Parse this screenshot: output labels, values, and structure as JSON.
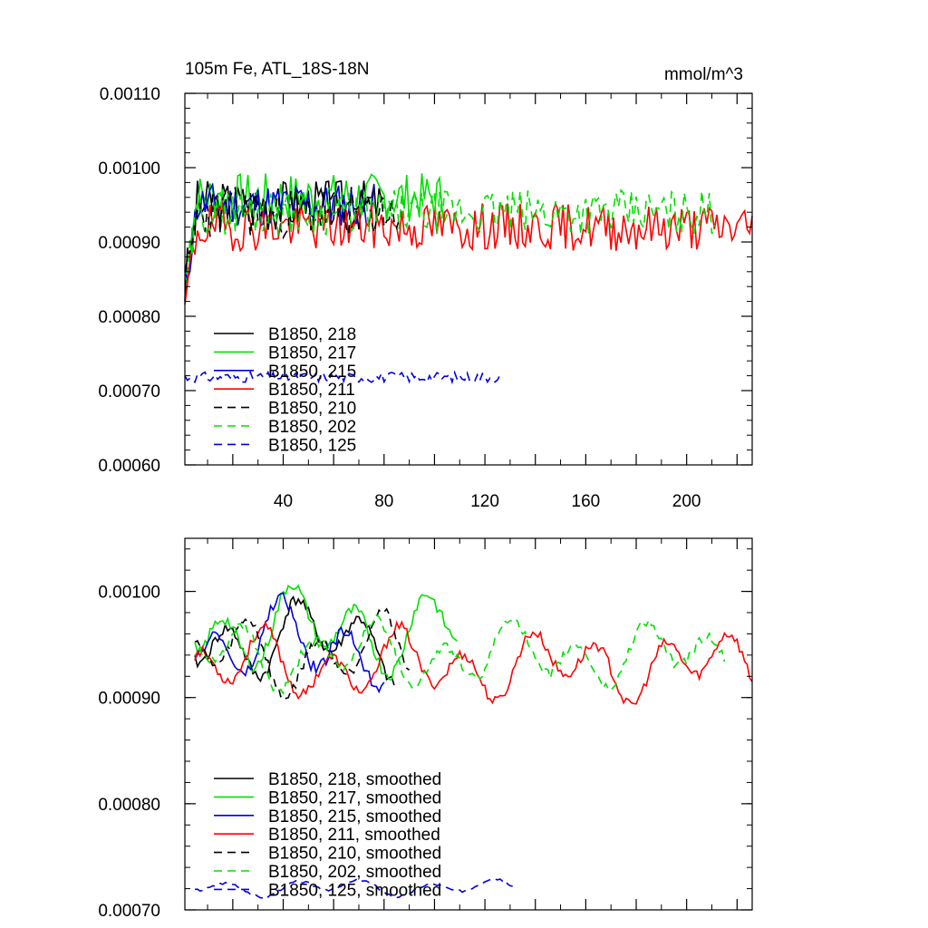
{
  "chart_data": [
    {
      "type": "line",
      "title": "105m Fe, ATL_18S-18N",
      "units": "mmol/m^3",
      "xlabel": "",
      "ylabel": "",
      "xlim": [
        1,
        226
      ],
      "ylim": [
        0.0006,
        0.0011
      ],
      "xticks": [
        "40",
        "80",
        "120",
        "160",
        "200"
      ],
      "yticks": [
        "0.00060",
        "0.00070",
        "0.00080",
        "0.00090",
        "0.00100",
        "0.00110"
      ],
      "legend_position": "lower-left",
      "series": [
        {
          "name": "B1850, 218",
          "color": "#000000",
          "dash": "solid",
          "length": 80,
          "base": 0.00095,
          "amp": 3.5e-05,
          "seed": 3
        },
        {
          "name": "B1850, 217",
          "color": "#00e000",
          "dash": "solid",
          "length": 105,
          "base": 0.00096,
          "amp": 3.3e-05,
          "seed": 7
        },
        {
          "name": "B1850, 215",
          "color": "#0000e0",
          "dash": "solid",
          "length": 76,
          "base": 0.00095,
          "amp": 3e-05,
          "seed": 11
        },
        {
          "name": "B1850, 211",
          "color": "#ff0000",
          "dash": "solid",
          "length": 226,
          "base": 0.00092,
          "amp": 3.2e-05,
          "seed": 19
        },
        {
          "name": "B1850, 210",
          "color": "#000000",
          "dash": "dashed",
          "length": 86,
          "base": 0.00094,
          "amp": 3.5e-05,
          "seed": 23
        },
        {
          "name": "B1850, 202",
          "color": "#00e000",
          "dash": "dashed",
          "length": 211,
          "base": 0.00094,
          "amp": 3e-05,
          "seed": 29
        },
        {
          "name": "B1850, 125",
          "color": "#0000e0",
          "dash": "dashed",
          "length": 127,
          "base": 0.000718,
          "amp": 7e-06,
          "seed": 31
        }
      ]
    },
    {
      "type": "line",
      "title": "",
      "xlabel": "",
      "ylabel": "",
      "xlim": [
        1,
        226
      ],
      "ylim": [
        0.0007,
        0.00105
      ],
      "xticks": [],
      "yticks": [
        "0.00070",
        "0.00080",
        "0.00090",
        "0.00100"
      ],
      "legend_position": "lower-left",
      "series": [
        {
          "name": "B1850, 218, smoothed",
          "color": "#000000",
          "dash": "solid",
          "start": 5,
          "length": 80,
          "base": 0.000955,
          "amp": 2.8e-05,
          "seed": 41
        },
        {
          "name": "B1850, 217, smoothed",
          "color": "#00e000",
          "dash": "solid",
          "start": 5,
          "length": 105,
          "base": 0.000965,
          "amp": 3e-05,
          "seed": 43
        },
        {
          "name": "B1850, 215, smoothed",
          "color": "#0000e0",
          "dash": "solid",
          "start": 5,
          "length": 76,
          "base": 0.00095,
          "amp": 3e-05,
          "seed": 47
        },
        {
          "name": "B1850, 211, smoothed",
          "color": "#ff0000",
          "dash": "solid",
          "start": 5,
          "length": 222,
          "base": 0.00093,
          "amp": 2.5e-05,
          "seed": 53
        },
        {
          "name": "B1850, 210, smoothed",
          "color": "#000000",
          "dash": "dashed",
          "start": 5,
          "length": 86,
          "base": 0.00094,
          "amp": 2.8e-05,
          "seed": 59
        },
        {
          "name": "B1850, 202, smoothed",
          "color": "#00e000",
          "dash": "dashed",
          "start": 5,
          "length": 211,
          "base": 0.00094,
          "amp": 2.4e-05,
          "seed": 61
        },
        {
          "name": "B1850, 125, smoothed",
          "color": "#0000e0",
          "dash": "dashed",
          "start": 5,
          "length": 127,
          "base": 0.000721,
          "amp": 6e-06,
          "seed": 67
        }
      ]
    }
  ]
}
